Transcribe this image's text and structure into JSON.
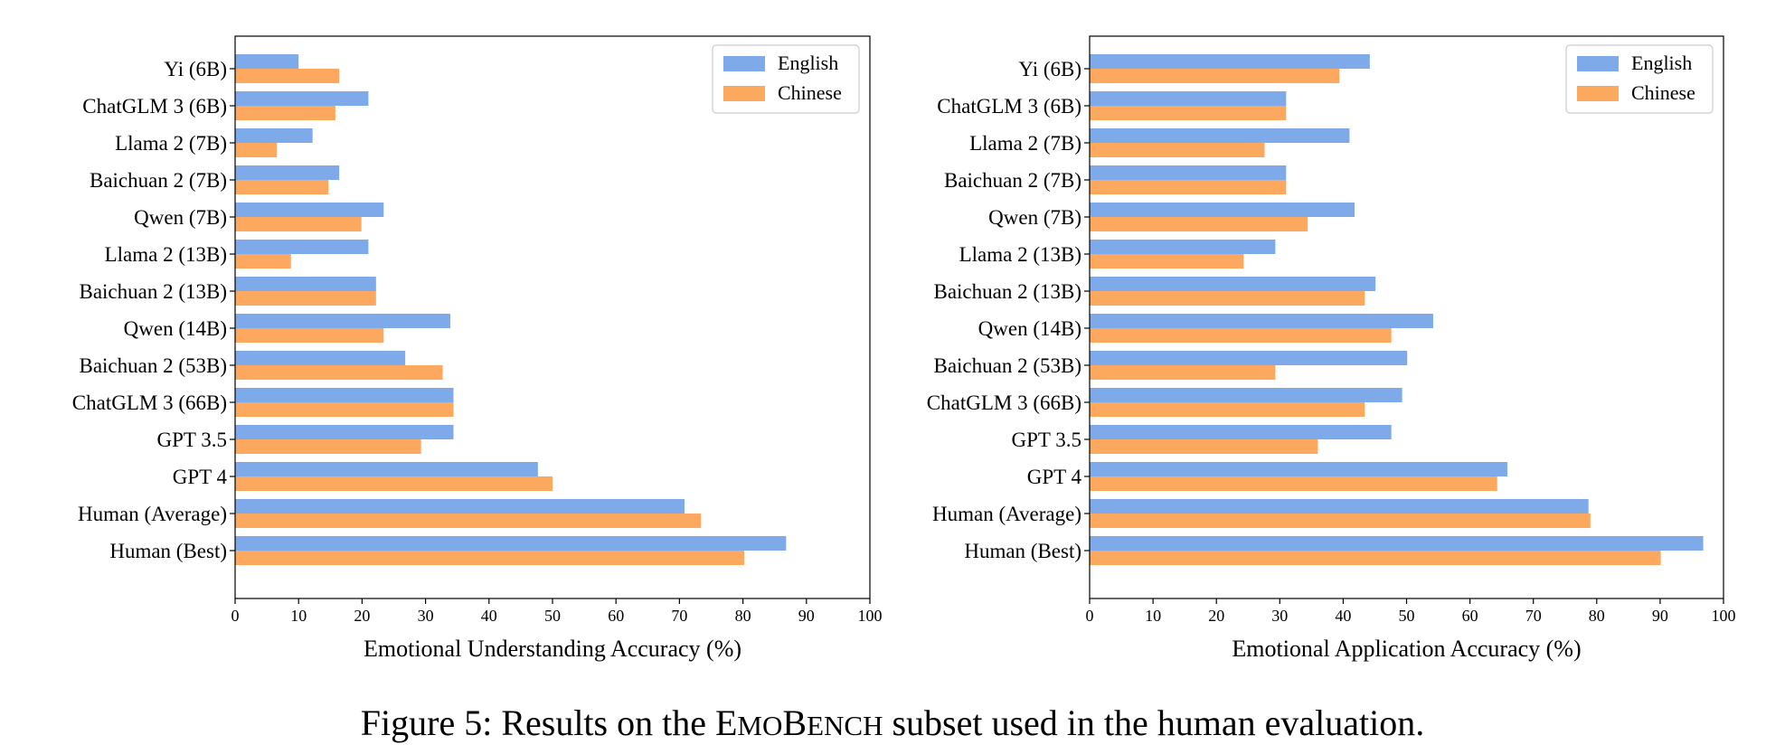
{
  "colors": {
    "English": "#7eaaea",
    "Chinese": "#fca85f"
  },
  "chart_data": [
    {
      "type": "bar",
      "orientation": "horizontal",
      "categories": [
        "Yi (6B)",
        "ChatGLM 3 (6B)",
        "Llama 2 (7B)",
        "Baichuan 2 (7B)",
        "Qwen (7B)",
        "Llama 2 (13B)",
        "Baichuan 2 (13B)",
        "Qwen (14B)",
        "Baichuan 2 (53B)",
        "ChatGLM 3 (66B)",
        "GPT 3.5",
        "GPT 4",
        "Human (Average)",
        "Human (Best)"
      ],
      "series": [
        {
          "name": "English",
          "values": [
            10.0,
            21.0,
            12.2,
            16.4,
            23.4,
            21.0,
            22.2,
            33.9,
            26.8,
            34.4,
            34.4,
            47.7,
            70.8,
            86.8
          ]
        },
        {
          "name": "Chinese",
          "values": [
            16.4,
            15.8,
            6.6,
            14.7,
            19.9,
            8.8,
            22.2,
            23.4,
            32.7,
            34.4,
            29.3,
            50.0,
            73.4,
            80.2
          ]
        }
      ],
      "xlabel": "Emotional Understanding Accuracy (%)",
      "ylabel": "",
      "xlim": [
        0,
        100
      ],
      "xticks": [
        "0",
        "10",
        "20",
        "30",
        "40",
        "50",
        "60",
        "70",
        "80",
        "90",
        "100"
      ],
      "legend": {
        "position": "top-right",
        "entries": [
          "English",
          "Chinese"
        ]
      },
      "grid": false
    },
    {
      "type": "bar",
      "orientation": "horizontal",
      "categories": [
        "Yi (6B)",
        "ChatGLM 3 (6B)",
        "Llama 2 (7B)",
        "Baichuan 2 (7B)",
        "Qwen (7B)",
        "Llama 2 (13B)",
        "Baichuan 2 (13B)",
        "Qwen (14B)",
        "Baichuan 2 (53B)",
        "ChatGLM 3 (66B)",
        "GPT 3.5",
        "GPT 4",
        "Human (Average)",
        "Human (Best)"
      ],
      "series": [
        {
          "name": "English",
          "values": [
            44.2,
            31.0,
            41.0,
            31.0,
            41.8,
            29.3,
            45.1,
            54.2,
            50.1,
            49.3,
            47.6,
            65.9,
            78.7,
            96.8
          ]
        },
        {
          "name": "Chinese",
          "values": [
            39.4,
            31.0,
            27.6,
            31.0,
            34.4,
            24.3,
            43.4,
            47.6,
            29.3,
            43.4,
            36.0,
            64.3,
            79.0,
            90.1
          ]
        }
      ],
      "xlabel": "Emotional Application Accuracy (%)",
      "ylabel": "",
      "xlim": [
        0,
        100
      ],
      "xticks": [
        "0",
        "10",
        "20",
        "30",
        "40",
        "50",
        "60",
        "70",
        "80",
        "90",
        "100"
      ],
      "legend": {
        "position": "top-right",
        "entries": [
          "English",
          "Chinese"
        ]
      },
      "grid": false
    }
  ],
  "caption": {
    "prefix": "Figure 5: Results on the ",
    "brand_e": "E",
    "brand_mo": "MO",
    "brand_b": "B",
    "brand_ench": "ENCH",
    "suffix": " subset used in the human evaluation."
  }
}
